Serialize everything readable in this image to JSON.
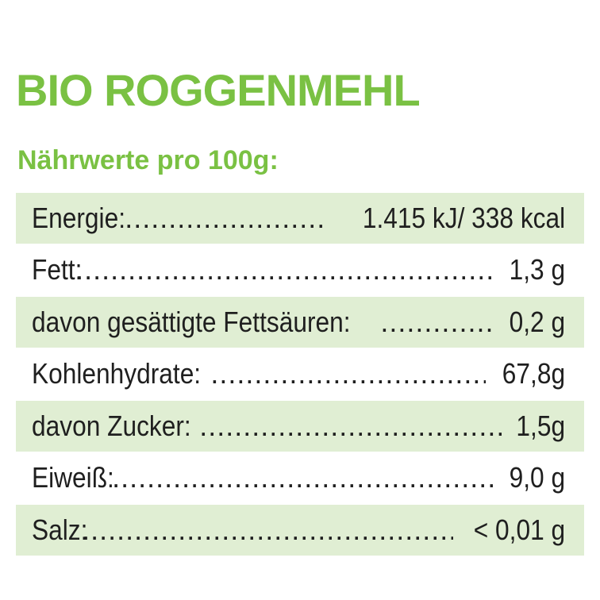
{
  "header": {
    "title": "BIO ROGGENMEHL",
    "subtitle": "Nährwerte pro 100g:"
  },
  "colors": {
    "accent_green": "#7ac143",
    "row_shade": "#e0eed3",
    "text": "#1f1f1f"
  },
  "nutrition_rows": [
    {
      "label": "Energie:",
      "value": "1.415 kJ/ 338 kcal",
      "shaded": true
    },
    {
      "label": "Fett:",
      "value": "1,3 g",
      "shaded": false
    },
    {
      "label": "davon gesättigte Fettsäuren:",
      "value": "0,2 g",
      "shaded": true
    },
    {
      "label": "Kohlenhydrate:",
      "value": "67,8g",
      "shaded": false
    },
    {
      "label": "davon Zucker:",
      "value": "1,5g",
      "shaded": true
    },
    {
      "label": "Eiweiß:",
      "value": "9,0 g",
      "shaded": false
    },
    {
      "label": "Salz:",
      "value": "< 0,01 g",
      "shaded": true
    }
  ]
}
